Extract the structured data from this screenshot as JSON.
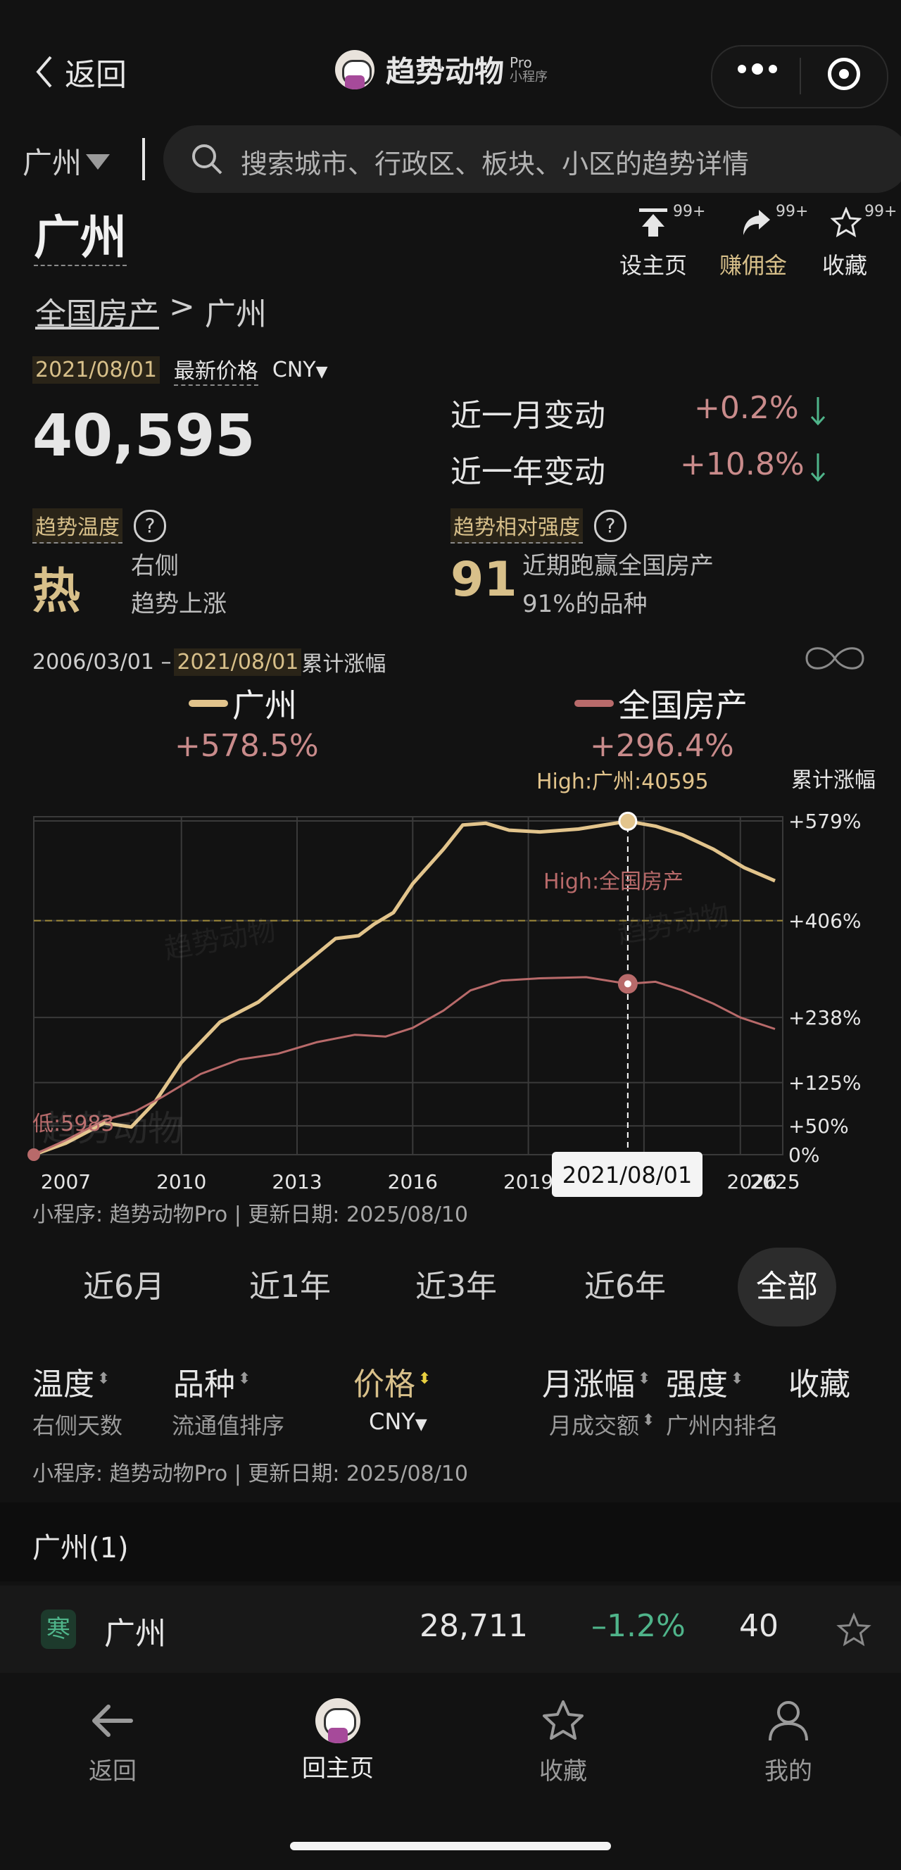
{
  "header": {
    "back_label": "返回",
    "app_name": "趋势动物",
    "app_badge_top": "Pro",
    "app_badge_bottom": "小程序"
  },
  "search": {
    "city": "广州",
    "placeholder": "搜索城市、行政区、板块、小区的趋势详情"
  },
  "title": {
    "name": "广州",
    "breadcrumb_root": "全国房产",
    "breadcrumb_sep": ">",
    "breadcrumb_current": "广州",
    "actions": [
      {
        "label": "设主页",
        "badge": "99+",
        "icon": "pin-top-icon"
      },
      {
        "label": "赚佣金",
        "badge": "99+",
        "icon": "share-icon"
      },
      {
        "label": "收藏",
        "badge": "99+",
        "icon": "star-icon"
      }
    ]
  },
  "price": {
    "date": "2021/08/01",
    "label": "最新价格",
    "currency": "CNY",
    "value": "40,595",
    "month_change_label": "近一月变动",
    "month_change": "+0.2%",
    "year_change_label": "近一年变动",
    "year_change": "+10.8%"
  },
  "temperature": {
    "label": "趋势温度",
    "value": "热",
    "desc1": "右侧",
    "desc2": "趋势上涨"
  },
  "strength": {
    "label": "趋势相对强度",
    "value": "91",
    "desc1": "近期跑赢全国房产",
    "desc2": "91%的品种"
  },
  "range": {
    "start": "2006/03/01 –",
    "end": "2021/08/01",
    "suffix": "累计涨幅"
  },
  "legend": [
    {
      "name": "广州",
      "change": "+578.5%",
      "color": "#e2c48c"
    },
    {
      "name": "全国房产",
      "change": "+296.4%",
      "color": "#b86a6a"
    }
  ],
  "chart_labels": {
    "high_gz": "High:广州:40595",
    "high_nat": "High:全国房产",
    "y_axis_title": "累计涨幅",
    "low_label": "低:5983",
    "cursor_date": "2021/08/01",
    "watermark": "趋势动物",
    "source": "小程序: 趋势动物Pro | 更新日期: 2025/08/10"
  },
  "chart_data": {
    "type": "line",
    "x_range": [
      2006.17,
      2025.6
    ],
    "y_range": [
      0,
      579
    ],
    "x_ticks": [
      "2007",
      "2010",
      "2013",
      "2016",
      "2019",
      "2026",
      "2025"
    ],
    "y_ticks": [
      "+579%",
      "+406%",
      "+238%",
      "+125%",
      "+50%",
      "0%"
    ],
    "reference_line": 406,
    "series": [
      {
        "name": "广州",
        "color": "#e2c48c",
        "points": [
          [
            2006.17,
            0
          ],
          [
            2007,
            20
          ],
          [
            2008,
            55
          ],
          [
            2008.7,
            48
          ],
          [
            2009.3,
            90
          ],
          [
            2010,
            160
          ],
          [
            2011,
            230
          ],
          [
            2012,
            265
          ],
          [
            2013,
            320
          ],
          [
            2014,
            375
          ],
          [
            2014.6,
            380
          ],
          [
            2015,
            400
          ],
          [
            2015.5,
            420
          ],
          [
            2016,
            470
          ],
          [
            2016.8,
            530
          ],
          [
            2017.3,
            572
          ],
          [
            2017.9,
            575
          ],
          [
            2018.5,
            563
          ],
          [
            2019.3,
            560
          ],
          [
            2020.3,
            565
          ],
          [
            2021.58,
            578.5
          ],
          [
            2022.3,
            570
          ],
          [
            2023,
            555
          ],
          [
            2023.8,
            530
          ],
          [
            2024.6,
            498
          ],
          [
            2025.4,
            475
          ]
        ]
      },
      {
        "name": "全国房产",
        "color": "#b86a6a",
        "points": [
          [
            2006.17,
            0
          ],
          [
            2007,
            25
          ],
          [
            2008,
            60
          ],
          [
            2008.8,
            75
          ],
          [
            2009.5,
            100
          ],
          [
            2010.5,
            140
          ],
          [
            2011.5,
            165
          ],
          [
            2012.5,
            175
          ],
          [
            2013.5,
            195
          ],
          [
            2014.5,
            208
          ],
          [
            2015.3,
            205
          ],
          [
            2016,
            220
          ],
          [
            2016.8,
            250
          ],
          [
            2017.5,
            285
          ],
          [
            2018.3,
            302
          ],
          [
            2019.3,
            306
          ],
          [
            2020.5,
            308
          ],
          [
            2021.58,
            296.4
          ],
          [
            2022.3,
            300
          ],
          [
            2023,
            285
          ],
          [
            2023.8,
            262
          ],
          [
            2024.5,
            238
          ],
          [
            2025.4,
            218
          ]
        ]
      }
    ]
  },
  "periods": [
    "近6月",
    "近1年",
    "近3年",
    "近6年",
    "全部"
  ],
  "table": {
    "headers": [
      {
        "label": "温度",
        "sub": "右侧天数"
      },
      {
        "label": "品种",
        "sub": "流通值排序"
      },
      {
        "label": "价格",
        "sub": "CNY"
      },
      {
        "label": "月涨幅",
        "sub": "月成交额"
      },
      {
        "label": "强度",
        "sub": "广州内排名"
      },
      {
        "label": "收藏",
        "sub": ""
      }
    ],
    "source": "小程序: 趋势动物Pro | 更新日期: 2025/08/10",
    "group_label": "广州(1)",
    "rows": [
      {
        "temp": "寒",
        "name": "广州",
        "price": "28,711",
        "change": "–1.2%",
        "strength": "40"
      }
    ]
  },
  "bottom_nav": [
    {
      "label": "返回",
      "icon": "back-arrow-icon"
    },
    {
      "label": "回主页",
      "icon": "app-avatar-icon"
    },
    {
      "label": "收藏",
      "icon": "star-icon"
    },
    {
      "label": "我的",
      "icon": "user-icon"
    }
  ]
}
